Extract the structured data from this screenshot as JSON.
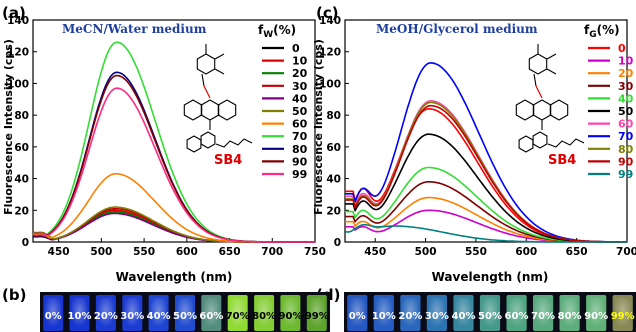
{
  "chart_data": [
    {
      "panel_label": "(a)",
      "type": "line",
      "medium_label": "MeCN/Water medium",
      "xlabel": "Wavelength (nm)",
      "ylabel": "Fluorescence Intensity (cps)",
      "xlim": [
        420,
        750
      ],
      "ylim": [
        0,
        140
      ],
      "x_ticks": [
        450,
        500,
        550,
        600,
        650,
        700,
        750
      ],
      "y_ticks": [
        0,
        20,
        40,
        60,
        80,
        100,
        120,
        140
      ],
      "legend_title": "fW(%)",
      "legend_title_main": "f",
      "legend_title_sub": "W",
      "legend_title_rest": "(%)",
      "compound_label": "SB4",
      "legend_position": "right",
      "series": [
        {
          "name": "0",
          "color": "#000000",
          "peak": 19,
          "peak_x": 515,
          "base": 5,
          "dip_x": 448,
          "dip_y": 2
        },
        {
          "name": "10",
          "color": "#e00000",
          "peak": 20,
          "peak_x": 515,
          "base": 6,
          "dip_x": 448,
          "dip_y": 3
        },
        {
          "name": "20",
          "color": "#008000",
          "peak": 19,
          "peak_x": 515,
          "base": 7,
          "dip_x": 448,
          "dip_y": 4
        },
        {
          "name": "30",
          "color": "#c00000",
          "peak": 21,
          "peak_x": 516,
          "base": 7,
          "dip_x": 448,
          "dip_y": 4
        },
        {
          "name": "40",
          "color": "#800080",
          "peak": 18,
          "peak_x": 515,
          "base": 6,
          "dip_x": 448,
          "dip_y": 3
        },
        {
          "name": "50",
          "color": "#808000",
          "peak": 22,
          "peak_x": 516,
          "base": 9,
          "dip_x": 448,
          "dip_y": 5
        },
        {
          "name": "60",
          "color": "#ff8000",
          "peak": 43,
          "peak_x": 517,
          "base": 7,
          "dip_x": 448,
          "dip_y": 4
        },
        {
          "name": "70",
          "color": "#33dd33",
          "peak": 126,
          "peak_x": 518,
          "base": 8,
          "dip_x": 448,
          "dip_y": 5
        },
        {
          "name": "80",
          "color": "#000080",
          "peak": 107,
          "peak_x": 518,
          "base": 8,
          "dip_x": 448,
          "dip_y": 5
        },
        {
          "name": "90",
          "color": "#800000",
          "peak": 105,
          "peak_x": 518,
          "base": 8,
          "dip_x": 448,
          "dip_y": 5
        },
        {
          "name": "99",
          "color": "#ff2a7f",
          "peak": 97,
          "peak_x": 518,
          "base": 8,
          "dip_x": 448,
          "dip_y": 5
        }
      ]
    },
    {
      "panel_label": "(c)",
      "type": "line",
      "medium_label": "MeOH/Glycerol medium",
      "xlabel": "Wavelength (nm)",
      "ylabel": "Fluorescence Intensity (cps)",
      "xlim": [
        420,
        700
      ],
      "ylim": [
        0,
        140
      ],
      "x_ticks": [
        450,
        500,
        550,
        600,
        650,
        700
      ],
      "y_ticks": [
        0,
        20,
        40,
        60,
        80,
        100,
        120,
        140
      ],
      "legend_title": "fG(%)",
      "legend_title_main": "f",
      "legend_title_sub": "G",
      "legend_title_rest": "(%)",
      "compound_label": "SB4",
      "legend_position": "right",
      "series": [
        {
          "name": "0",
          "color": "#ff0000",
          "peak": 84,
          "peak_x": 503,
          "shoulder": 40
        },
        {
          "name": "10",
          "color": "#d000d0",
          "peak": 20,
          "peak_x": 503,
          "shoulder": 12
        },
        {
          "name": "20",
          "color": "#ff8000",
          "peak": 28,
          "peak_x": 503,
          "shoulder": 16
        },
        {
          "name": "30",
          "color": "#800000",
          "peak": 38,
          "peak_x": 503,
          "shoulder": 20
        },
        {
          "name": "40",
          "color": "#33dd33",
          "peak": 47,
          "peak_x": 503,
          "shoulder": 24
        },
        {
          "name": "50",
          "color": "#000000",
          "peak": 68,
          "peak_x": 503,
          "shoulder": 30
        },
        {
          "name": "60",
          "color": "#ff44aa",
          "peak": 89,
          "peak_x": 505,
          "shoulder": 36
        },
        {
          "name": "70",
          "color": "#0000ff",
          "peak": 113,
          "peak_x": 505,
          "shoulder": 38
        },
        {
          "name": "80",
          "color": "#808000",
          "peak": 88,
          "peak_x": 505,
          "shoulder": 34
        },
        {
          "name": "90",
          "color": "#c00000",
          "peak": 86,
          "peak_x": 505,
          "shoulder": 33
        },
        {
          "name": "99",
          "color": "#008080",
          "peak": 10,
          "peak_x": 470,
          "shoulder": 8
        }
      ]
    }
  ],
  "photos": {
    "b": {
      "label": "(b)",
      "vials": [
        {
          "text": "0%",
          "glow": "#1a3df0",
          "text_color": "#ffffff"
        },
        {
          "text": "10%",
          "glow": "#1a3df0",
          "text_color": "#ffffff"
        },
        {
          "text": "20%",
          "glow": "#1e44f2",
          "text_color": "#ffffff"
        },
        {
          "text": "30%",
          "glow": "#1e44f2",
          "text_color": "#ffffff"
        },
        {
          "text": "40%",
          "glow": "#2250f2",
          "text_color": "#ffffff"
        },
        {
          "text": "50%",
          "glow": "#2458f0",
          "text_color": "#ffffff"
        },
        {
          "text": "60%",
          "glow": "#5fa58f",
          "text_color": "#ffffff"
        },
        {
          "text": "70%",
          "glow": "#a8ff3a",
          "text_color": "#000000"
        },
        {
          "text": "80%",
          "glow": "#9af03a",
          "text_color": "#000000"
        },
        {
          "text": "90%",
          "glow": "#7fd835",
          "text_color": "#000000"
        },
        {
          "text": "99%",
          "glow": "#6cc030",
          "text_color": "#000000"
        }
      ]
    },
    "d": {
      "label": "(d)",
      "vials": [
        {
          "text": "0%",
          "glow": "#2a66e0",
          "text_color": "#ffffff"
        },
        {
          "text": "10%",
          "glow": "#2a6ce0",
          "text_color": "#ffffff"
        },
        {
          "text": "20%",
          "glow": "#2e78d8",
          "text_color": "#ffffff"
        },
        {
          "text": "30%",
          "glow": "#3386cc",
          "text_color": "#ffffff"
        },
        {
          "text": "40%",
          "glow": "#3f9cb8",
          "text_color": "#ffffff"
        },
        {
          "text": "50%",
          "glow": "#4fb3a0",
          "text_color": "#ffffff"
        },
        {
          "text": "60%",
          "glow": "#5cbf95",
          "text_color": "#ffffff"
        },
        {
          "text": "70%",
          "glow": "#66c690",
          "text_color": "#ffffff"
        },
        {
          "text": "80%",
          "glow": "#6ccb8e",
          "text_color": "#ffffff"
        },
        {
          "text": "90%",
          "glow": "#71cf8a",
          "text_color": "#ffffff"
        },
        {
          "text": "99%",
          "glow": "#9ea060",
          "text_color": "#ffff00"
        }
      ]
    }
  }
}
